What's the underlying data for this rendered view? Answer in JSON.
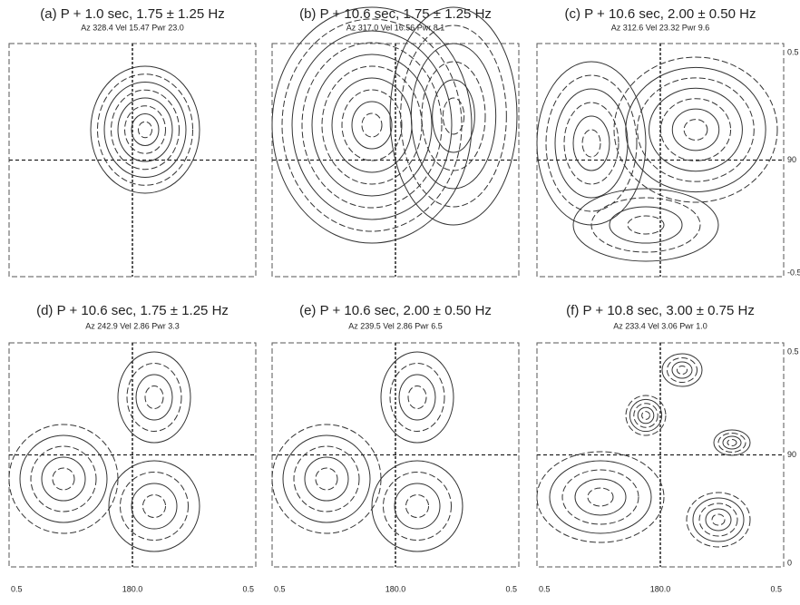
{
  "panels": [
    {
      "title": "(a) P + 1.0 sec, 1.75 ± 1.25 Hz",
      "subtitle": "Az 328.4  Vel 15.47  Pwr 23.0"
    },
    {
      "title": "(b) P + 10.6 sec, 1.75 ± 1.25 Hz",
      "subtitle": "Az 317.0  Vel 16.56  Pwr 8.1"
    },
    {
      "title": "(c) P + 10.6 sec, 2.00 ± 0.50 Hz",
      "subtitle": "Az 312.6  Vel 23.32  Pwr 9.6",
      "right_labels": [
        "0.5",
        "90",
        "-0.5"
      ]
    },
    {
      "title": "(d) P + 10.6 sec, 1.75 ± 1.25 Hz",
      "subtitle": "Az 242.9  Vel 2.86  Pwr 3.3",
      "bottom_labels": [
        "0.5",
        "180.0",
        "0.5"
      ]
    },
    {
      "title": "(e) P + 10.6 sec, 2.00 ± 0.50 Hz",
      "subtitle": "Az 239.5  Vel 2.86  Pwr 6.5",
      "bottom_labels": [
        "0.5",
        "180.0",
        "0.5"
      ]
    },
    {
      "title": "(f) P + 10.8 sec, 3.00 ± 0.75 Hz",
      "subtitle": "Az 233.4  Vel 3.06  Pwr 1.0",
      "right_labels": [
        "0.5",
        "90",
        "0"
      ],
      "bottom_labels": [
        "0.5",
        "180.0",
        "0.5"
      ]
    }
  ]
}
